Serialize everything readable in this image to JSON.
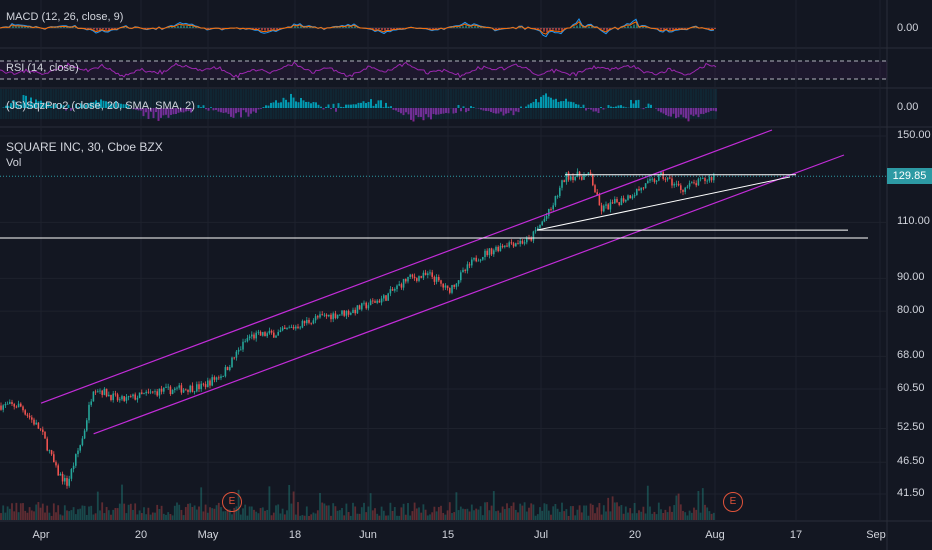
{
  "panes": {
    "macd": {
      "title": "MACD (12, 26, close, 9)",
      "value": "0.00"
    },
    "rsi": {
      "title": "RSI (14, close)"
    },
    "sqz": {
      "title": "(JS)SqzPro2 (close, 20, SMA, SMA, 2)",
      "value": "0.00"
    },
    "main": {
      "title": "SQUARE INC, 30, Cboe BZX",
      "vol_label": "Vol"
    }
  },
  "last_price": "129.85",
  "earnings_marker": "E",
  "colors": {
    "up": "#26a69a",
    "down": "#ef5350",
    "channel": "#c22cd8",
    "rsi": "#9c27b0",
    "bg": "#131722"
  },
  "chart_data": {
    "type": "candlestick",
    "title": "SQUARE INC, 30, Cboe BZX",
    "price_ticks": [
      "150.00",
      "110.00",
      "90.00",
      "80.00",
      "68.00",
      "60.50",
      "52.50",
      "46.50",
      "41.50"
    ],
    "date_ticks": [
      "Apr",
      "20",
      "May",
      "18",
      "Jun",
      "15",
      "Jul",
      "20",
      "Aug",
      "17",
      "Sep"
    ],
    "series_close_approx": [
      {
        "date": "Mar 28",
        "value": 57
      },
      {
        "date": "Apr 1",
        "value": 52
      },
      {
        "date": "Apr 4",
        "value": 45
      },
      {
        "date": "Apr 6",
        "value": 43
      },
      {
        "date": "Apr 9",
        "value": 51
      },
      {
        "date": "Apr 11",
        "value": 61
      },
      {
        "date": "Apr 16",
        "value": 58
      },
      {
        "date": "Apr 23",
        "value": 60
      },
      {
        "date": "Apr 30",
        "value": 61
      },
      {
        "date": "May 4",
        "value": 64
      },
      {
        "date": "May 9",
        "value": 73
      },
      {
        "date": "May 15",
        "value": 74
      },
      {
        "date": "May 22",
        "value": 78
      },
      {
        "date": "May 29",
        "value": 80
      },
      {
        "date": "Jun 4",
        "value": 84
      },
      {
        "date": "Jun 8",
        "value": 90
      },
      {
        "date": "Jun 12",
        "value": 91
      },
      {
        "date": "Jun 15",
        "value": 86
      },
      {
        "date": "Jun 20",
        "value": 97
      },
      {
        "date": "Jun 25",
        "value": 102
      },
      {
        "date": "Jun 29",
        "value": 103
      },
      {
        "date": "Jul 3",
        "value": 115
      },
      {
        "date": "Jul 6",
        "value": 130
      },
      {
        "date": "Jul 11",
        "value": 130
      },
      {
        "date": "Jul 13",
        "value": 115
      },
      {
        "date": "Jul 18",
        "value": 120
      },
      {
        "date": "Jul 24",
        "value": 130
      },
      {
        "date": "Jul 27",
        "value": 124
      },
      {
        "date": "Aug 1",
        "value": 129.85
      }
    ],
    "drawings": {
      "ascending_channel": "magenta parallel lines from early April to mid August",
      "horizontal_levels": [
        130.5,
        107,
        104
      ],
      "triangle": "ascending support line from ~107 (Jul 1) converging to ~130 (mid Aug)"
    }
  }
}
